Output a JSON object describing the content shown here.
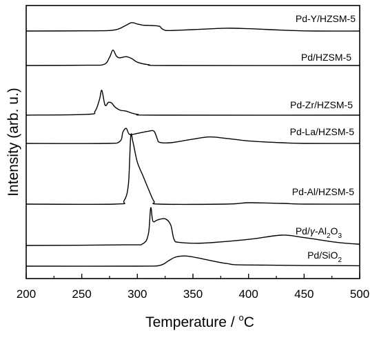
{
  "chart_data": {
    "type": "line",
    "title": "",
    "xlabel": {
      "text": "Temperature / ",
      "deg": "o",
      "unit": "C"
    },
    "ylabel": "Intensity (arb. u.)",
    "xlim": [
      200,
      500
    ],
    "x_ticks": [
      "200",
      "250",
      "300",
      "350",
      "400",
      "450",
      "500"
    ],
    "y_ticks": "none",
    "grid": false,
    "legend": "none",
    "series": [
      {
        "label": {
          "parts": [
            {
              "t": "Pd-Y/HZSM-5"
            }
          ]
        },
        "baseline": 0.0,
        "points": [
          [
            200,
            0
          ],
          [
            260,
            0.01
          ],
          [
            280,
            0.05
          ],
          [
            290,
            0.25
          ],
          [
            295,
            0.36
          ],
          [
            300,
            0.3
          ],
          [
            305,
            0.25
          ],
          [
            310,
            0.24
          ],
          [
            315,
            0.23
          ],
          [
            320,
            0.2
          ],
          [
            322,
            0.1
          ],
          [
            325,
            0.03
          ],
          [
            330,
            0.02
          ],
          [
            350,
            0.06
          ],
          [
            380,
            0.12
          ],
          [
            400,
            0.1
          ],
          [
            420,
            0.06
          ],
          [
            440,
            0.02
          ],
          [
            460,
            0
          ],
          [
            500,
            0
          ]
        ]
      },
      {
        "label": {
          "parts": [
            {
              "t": "Pd/HZSM-5"
            }
          ]
        },
        "baseline": 0.0,
        "points": [
          [
            200,
            0
          ],
          [
            255,
            0.01
          ],
          [
            270,
            0.04
          ],
          [
            275,
            0.3
          ],
          [
            278,
            0.56
          ],
          [
            281,
            0.35
          ],
          [
            284,
            0.28
          ],
          [
            290,
            0.32
          ],
          [
            295,
            0.25
          ],
          [
            300,
            0.12
          ],
          [
            310,
            0.03
          ],
          [
            330,
            0
          ],
          [
            500,
            0
          ]
        ]
      },
      {
        "label": {
          "parts": [
            {
              "t": "Pd-Zr/HZSM-5"
            }
          ]
        },
        "baseline": 0.0,
        "points": [
          [
            200,
            0
          ],
          [
            255,
            0.02
          ],
          [
            262,
            0.1
          ],
          [
            266,
            0.4
          ],
          [
            268,
            0.62
          ],
          [
            271,
            0.25
          ],
          [
            274,
            0.32
          ],
          [
            277,
            0.3
          ],
          [
            280,
            0.2
          ],
          [
            285,
            0.12
          ],
          [
            290,
            0.1
          ],
          [
            300,
            0.02
          ],
          [
            320,
            0
          ],
          [
            500,
            0
          ]
        ]
      },
      {
        "label": {
          "parts": [
            {
              "t": "Pd-La/HZSM-5"
            }
          ]
        },
        "baseline": 0.0,
        "points": [
          [
            200,
            0
          ],
          [
            270,
            0
          ],
          [
            284,
            0.05
          ],
          [
            287,
            0.32
          ],
          [
            290,
            0.42
          ],
          [
            293,
            0.25
          ],
          [
            300,
            0.28
          ],
          [
            310,
            0.34
          ],
          [
            315,
            0.34
          ],
          [
            318,
            0.12
          ],
          [
            320,
            0.03
          ],
          [
            330,
            0.02
          ],
          [
            350,
            0.12
          ],
          [
            365,
            0.18
          ],
          [
            380,
            0.14
          ],
          [
            400,
            0.07
          ],
          [
            430,
            0.02
          ],
          [
            450,
            0
          ],
          [
            500,
            0
          ]
        ]
      },
      {
        "label": {
          "parts": [
            {
              "t": "Pd-Al/HZSM-5"
            }
          ]
        },
        "baseline": 0.0,
        "points": [
          [
            200,
            0
          ],
          [
            280,
            0
          ],
          [
            288,
            0.05
          ],
          [
            292,
            0.3
          ],
          [
            294,
            1.0
          ],
          [
            296,
            0.92
          ],
          [
            300,
            0.62
          ],
          [
            305,
            0.42
          ],
          [
            310,
            0.22
          ],
          [
            315,
            0.04
          ],
          [
            320,
            0
          ],
          [
            380,
            0
          ],
          [
            400,
            0.02
          ],
          [
            430,
            0.01
          ],
          [
            450,
            0
          ],
          [
            500,
            0
          ]
        ]
      },
      {
        "label": {
          "parts": [
            {
              "t": "Pd/"
            },
            {
              "t": "γ",
              "italic": true
            },
            {
              "t": "-Al"
            },
            {
              "t": "2",
              "sub": true
            },
            {
              "t": "O"
            },
            {
              "t": "3",
              "sub": true
            }
          ]
        },
        "baseline": 0.0,
        "points": [
          [
            200,
            0
          ],
          [
            290,
            0.01
          ],
          [
            305,
            0.03
          ],
          [
            310,
            0.2
          ],
          [
            312,
            0.62
          ],
          [
            314,
            0.4
          ],
          [
            318,
            0.42
          ],
          [
            325,
            0.44
          ],
          [
            330,
            0.34
          ],
          [
            333,
            0.1
          ],
          [
            338,
            0.05
          ],
          [
            360,
            0.04
          ],
          [
            400,
            0.1
          ],
          [
            430,
            0.17
          ],
          [
            450,
            0.13
          ],
          [
            480,
            0.05
          ],
          [
            500,
            0.02
          ]
        ]
      },
      {
        "label": {
          "parts": [
            {
              "t": "Pd/SiO"
            },
            {
              "t": "2",
              "sub": true
            }
          ]
        },
        "baseline": 0.0,
        "points": [
          [
            200,
            0
          ],
          [
            300,
            0
          ],
          [
            320,
            0.02
          ],
          [
            328,
            0.14
          ],
          [
            335,
            0.24
          ],
          [
            345,
            0.26
          ],
          [
            360,
            0.18
          ],
          [
            380,
            0.07
          ],
          [
            400,
            0.03
          ],
          [
            500,
            0.01
          ]
        ]
      }
    ]
  }
}
